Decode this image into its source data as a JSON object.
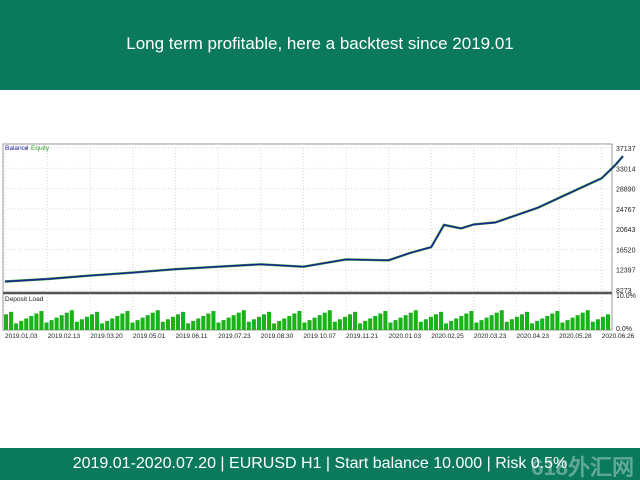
{
  "header": {
    "title": "Long term profitable, here a backtest since 2019.01"
  },
  "footer": {
    "text": "2019.01-2020.07.20  |  EURUSD H1  |  Start balance 10.000  |  Risk 0.5%"
  },
  "watermark": "618外汇网",
  "colors": {
    "brand": "#0b7a5c",
    "balance": "#1d1d9a",
    "equity": "#2ea02e",
    "deposit_load": "#19b219"
  },
  "chart_data": [
    {
      "type": "line",
      "legend": [
        {
          "name": "Balance",
          "color": "#1d1d9a"
        },
        {
          "name": "Equity",
          "color": "#2ea02e"
        }
      ],
      "legend_position": "top-left",
      "y_ticks": [
        "37137",
        "33014",
        "28890",
        "24767",
        "20643",
        "16520",
        "12397",
        "8273"
      ],
      "ylim": [
        8273,
        37137
      ],
      "x_ticks": [
        "2019.01.03",
        "2019.02.13",
        "2019.03.20",
        "2019.05.01",
        "2019.06.11",
        "2019.07.23",
        "2019.08.30",
        "2019.10.07",
        "2019.11.21",
        "2020.01.03",
        "2020.02.25",
        "2020.03.23",
        "2020.04.23",
        "2020.05.28",
        "2020.06.26"
      ],
      "series": [
        {
          "name": "Balance",
          "x": [
            0,
            1,
            2,
            3,
            4,
            5,
            6,
            7,
            8,
            9,
            9.5,
            10,
            10.3,
            10.7,
            11,
            11.5,
            12,
            12.5,
            13,
            13.5,
            14,
            14.3,
            14.5
          ],
          "values": [
            10000,
            10500,
            11200,
            11800,
            12500,
            13000,
            13500,
            13000,
            14500,
            14300,
            15800,
            17000,
            21500,
            20800,
            21600,
            22000,
            23500,
            25000,
            27000,
            29000,
            31000,
            33500,
            35500
          ]
        }
      ]
    },
    {
      "type": "bar",
      "title": "Deposit Load",
      "y_ticks": [
        "10.0%",
        "0.0%"
      ],
      "ylim": [
        0,
        10
      ],
      "bar_count": 120,
      "typical_range": [
        3,
        9
      ]
    }
  ]
}
